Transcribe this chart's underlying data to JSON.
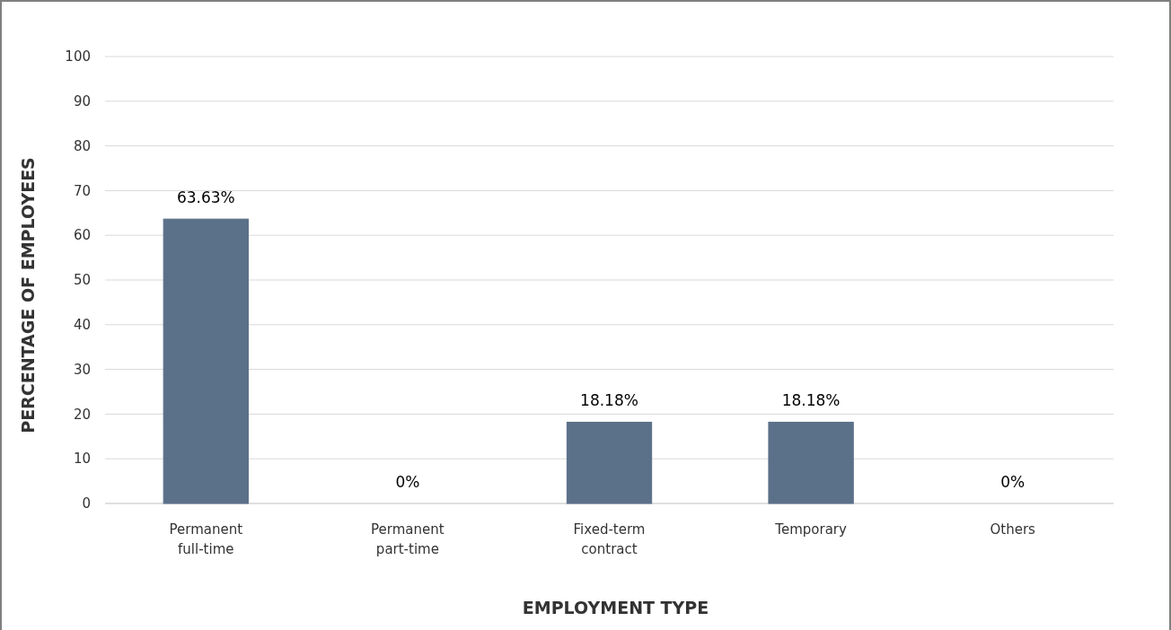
{
  "chart_data": {
    "type": "bar",
    "xlabel": "EMPLOYMENT TYPE",
    "ylabel": "PERCENTAGE OF EMPLOYEES",
    "categories": [
      "Permanent full-time",
      "Permanent part-time",
      "Fixed-term contract",
      "Temporary",
      "Others"
    ],
    "values": [
      63.63,
      0,
      18.18,
      18.18,
      0
    ],
    "value_labels": [
      "63.63%",
      "0%",
      "18.18%",
      "18.18%",
      "0%"
    ],
    "color": "#5b7089",
    "ylim": [
      0,
      100
    ],
    "yticks": [
      0,
      10,
      20,
      30,
      40,
      50,
      60,
      70,
      80,
      90,
      100
    ],
    "grid": "y"
  }
}
